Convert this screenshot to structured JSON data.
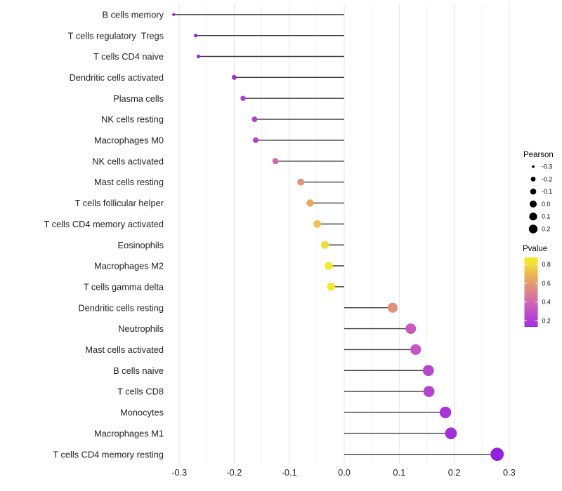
{
  "chart_data": {
    "type": "scatter",
    "variant": "lollipop",
    "title": "",
    "xlabel": "",
    "ylabel": "",
    "xlim": [
      -0.325,
      0.305
    ],
    "grid": "vertical major and minor gridlines, no panel border (ggplot minimal theme)",
    "legend_position": "right",
    "x_ticks": [
      -0.3,
      -0.2,
      -0.1,
      0.0,
      0.1,
      0.2,
      0.3
    ],
    "x_tick_labels": [
      "-0.3",
      "-0.2",
      "-0.1",
      "0.0",
      "0.1",
      "0.2",
      "0.3"
    ],
    "categories": [
      "B cells memory",
      "T cells regulatory  Tregs",
      "T cells CD4 naive",
      "Dendritic cells activated",
      "Plasma cells",
      "NK cells resting",
      "Macrophages M0",
      "NK cells activated",
      "Mast cells resting",
      "T cells follicular helper",
      "T cells CD4 memory activated",
      "Eosinophils",
      "Macrophages M2",
      "T cells gamma delta",
      "Dendritic cells resting",
      "Neutrophils",
      "Mast cells activated",
      "B cells naive",
      "T cells CD8",
      "Monocytes",
      "Macrophages M1",
      "T cells CD4 memory resting"
    ],
    "series": [
      {
        "name": "Pearson correlation (x position, dot size)",
        "values": [
          -0.31,
          -0.27,
          -0.265,
          -0.2,
          -0.184,
          -0.163,
          -0.161,
          -0.125,
          -0.079,
          -0.062,
          -0.049,
          -0.035,
          -0.028,
          -0.024,
          0.088,
          0.121,
          0.13,
          0.153,
          0.154,
          0.184,
          0.194,
          0.278
        ]
      },
      {
        "name": "Pvalue (dot color, estimated from color scale)",
        "values": [
          0.05,
          0.08,
          0.09,
          0.12,
          0.2,
          0.21,
          0.23,
          0.4,
          0.57,
          0.65,
          0.72,
          0.8,
          0.86,
          0.88,
          0.56,
          0.35,
          0.32,
          0.25,
          0.24,
          0.16,
          0.13,
          0.06
        ]
      }
    ],
    "legend": {
      "size": {
        "title": "Pearson",
        "tick_labels": [
          "-0.3",
          "-0.2",
          "-0.1",
          "0.0",
          "0.1",
          "0.2"
        ],
        "tick_values": [
          -0.3,
          -0.2,
          -0.1,
          0.0,
          0.1,
          0.2
        ],
        "dot_color": "#000000"
      },
      "color": {
        "title": "Pvalue",
        "tick_labels": [
          "0.8",
          "0.6",
          "0.4",
          "0.2"
        ],
        "tick_values": [
          0.8,
          0.6,
          0.4,
          0.2
        ],
        "bar_top_value": 0.875,
        "bar_bottom_value": 0.135,
        "gradient_top": "#F6EC25",
        "gradient_bottom": "#A526EA"
      }
    },
    "colors": {
      "stem": "#3d3d3d",
      "grid_major": "#e4e4e4",
      "grid_minor": "#f2f2f2",
      "axis_text": "#1f1f1f",
      "legend_text": "#000000",
      "background": "#ffffff",
      "pvalue_palette": [
        [
          0.0,
          "#8A1CD8"
        ],
        [
          0.05,
          "#921FDE"
        ],
        [
          0.1,
          "#9D2BE0"
        ],
        [
          0.15,
          "#A532DC"
        ],
        [
          0.2,
          "#AD3DD4"
        ],
        [
          0.25,
          "#B646CC"
        ],
        [
          0.3,
          "#C150C6"
        ],
        [
          0.35,
          "#CA5AC0"
        ],
        [
          0.4,
          "#D268B2"
        ],
        [
          0.45,
          "#D7769F"
        ],
        [
          0.5,
          "#DC838D"
        ],
        [
          0.55,
          "#E08D7C"
        ],
        [
          0.6,
          "#E49B6B"
        ],
        [
          0.65,
          "#E8A85C"
        ],
        [
          0.7,
          "#ECB851"
        ],
        [
          0.75,
          "#F0CB45"
        ],
        [
          0.8,
          "#F3DC39"
        ],
        [
          0.85,
          "#F5E82B"
        ],
        [
          0.9,
          "#F6EE1F"
        ]
      ]
    }
  }
}
